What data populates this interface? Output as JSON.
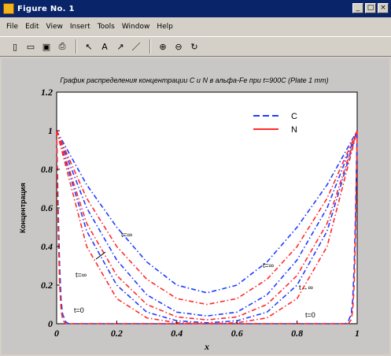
{
  "window": {
    "title": "Figure No. 1",
    "buttons": {
      "minimize": "_",
      "maximize": "□",
      "close": "×"
    }
  },
  "menu": [
    "File",
    "Edit",
    "View",
    "Insert",
    "Tools",
    "Window",
    "Help"
  ],
  "toolbar": {
    "icons": [
      "new-file-icon",
      "open-folder-icon",
      "save-icon",
      "print-icon",
      "arrow-pointer-icon",
      "text-insert-icon",
      "arrow-insert-icon",
      "line-insert-icon",
      "zoom-in-icon",
      "zoom-out-icon",
      "rotate-icon"
    ],
    "glyphs": [
      "▯",
      "▭",
      "▣",
      "⎙",
      "↖",
      "A",
      "↗",
      "／",
      "⊕",
      "⊖",
      "↻"
    ]
  },
  "colors": {
    "C": "#1f3cff",
    "N": "#ff2a2a"
  },
  "chart_data": {
    "type": "line",
    "title": "График распределения концентрации C и N в альфа-Fe при t=900C (Plate 1 mm)",
    "xlabel": "x",
    "ylabel": "Концентрация",
    "xlim": [
      0,
      1
    ],
    "ylim": [
      0,
      1.2
    ],
    "xticks": [
      "0",
      "0.2",
      "0.4",
      "0.6",
      "0.8",
      "1"
    ],
    "yticks": [
      "0",
      "0.2",
      "0.4",
      "0.6",
      "0.8",
      "1",
      "1.2"
    ],
    "grid": false,
    "legend_position": "top-right",
    "legend": [
      "C",
      "N"
    ],
    "annotations": [
      "t=∞",
      "t=∞",
      "t=∞",
      "t→∞",
      "t=0",
      "t=0"
    ],
    "series": [
      {
        "name": "C",
        "color": "#1f3cff",
        "style": "dashdot",
        "x": [
          0,
          0.1,
          0.2,
          0.3,
          0.4,
          0.5,
          0.6,
          0.7,
          0.8,
          0.9,
          1
        ],
        "y": [
          1,
          0.72,
          0.5,
          0.32,
          0.2,
          0.16,
          0.2,
          0.32,
          0.5,
          0.72,
          1
        ]
      },
      {
        "name": "",
        "color": "#1f3cff",
        "style": "dashdot",
        "x": [
          0,
          0.1,
          0.2,
          0.3,
          0.4,
          0.5,
          0.6,
          0.7,
          0.8,
          0.9,
          1
        ],
        "y": [
          1,
          0.6,
          0.33,
          0.15,
          0.06,
          0.04,
          0.06,
          0.15,
          0.33,
          0.6,
          1
        ]
      },
      {
        "name": "",
        "color": "#1f3cff",
        "style": "dashdot",
        "x": [
          0,
          0.1,
          0.2,
          0.3,
          0.4,
          0.5,
          0.6,
          0.7,
          0.8,
          0.9,
          1
        ],
        "y": [
          1,
          0.48,
          0.2,
          0.06,
          0.015,
          0.005,
          0.015,
          0.06,
          0.2,
          0.48,
          1
        ]
      },
      {
        "name": "",
        "color": "#1f3cff",
        "style": "dashed",
        "x": [
          0,
          0.005,
          0.01,
          0.015,
          0.02,
          0.03,
          0.04,
          0.5,
          0.96,
          0.97,
          0.98,
          0.985,
          0.99,
          0.995,
          1
        ],
        "y": [
          1,
          0.6,
          0.3,
          0.12,
          0.05,
          0.01,
          0,
          0,
          0,
          0.01,
          0.05,
          0.12,
          0.3,
          0.6,
          1
        ]
      },
      {
        "name": "N",
        "color": "#ff2a2a",
        "style": "dashdot",
        "x": [
          0,
          0.1,
          0.2,
          0.3,
          0.4,
          0.5,
          0.6,
          0.7,
          0.8,
          0.9,
          1
        ],
        "y": [
          1,
          0.65,
          0.4,
          0.23,
          0.13,
          0.1,
          0.13,
          0.23,
          0.4,
          0.65,
          1
        ]
      },
      {
        "name": "",
        "color": "#ff2a2a",
        "style": "dashdot",
        "x": [
          0,
          0.1,
          0.2,
          0.3,
          0.4,
          0.5,
          0.6,
          0.7,
          0.8,
          0.9,
          1
        ],
        "y": [
          1,
          0.52,
          0.25,
          0.1,
          0.035,
          0.02,
          0.035,
          0.1,
          0.25,
          0.52,
          1
        ]
      },
      {
        "name": "",
        "color": "#ff2a2a",
        "style": "dashdot",
        "x": [
          0,
          0.1,
          0.2,
          0.3,
          0.4,
          0.5,
          0.6,
          0.7,
          0.8,
          0.9,
          1
        ],
        "y": [
          1,
          0.4,
          0.13,
          0.03,
          0.005,
          0,
          0.005,
          0.03,
          0.13,
          0.4,
          1
        ]
      },
      {
        "name": "",
        "color": "#ff2a2a",
        "style": "dashed",
        "x": [
          0,
          0.005,
          0.01,
          0.015,
          0.02,
          0.03,
          0.5,
          0.97,
          0.98,
          0.985,
          0.99,
          0.995,
          1
        ],
        "y": [
          1,
          0.5,
          0.2,
          0.07,
          0.02,
          0,
          0,
          0,
          0.02,
          0.07,
          0.2,
          0.5,
          1
        ]
      }
    ]
  }
}
